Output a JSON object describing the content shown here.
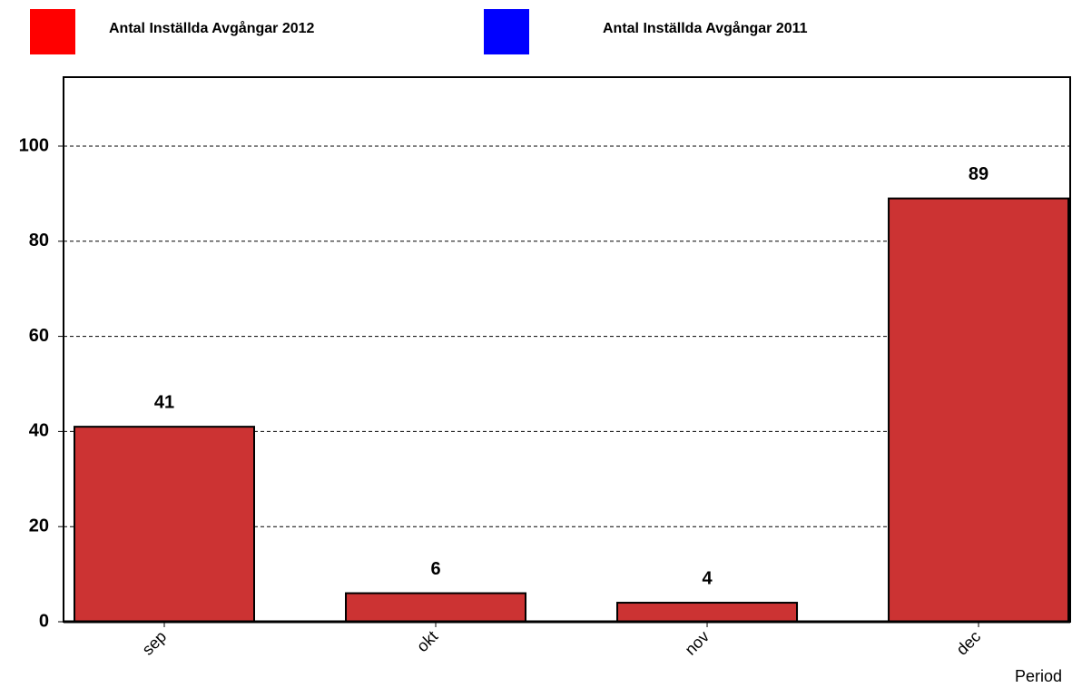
{
  "chart_data": {
    "type": "bar",
    "categories": [
      "sep",
      "okt",
      "nov",
      "dec"
    ],
    "series": [
      {
        "name": "Antal Inställda Avgångar 2012",
        "color": "#cc3333",
        "legend_color": "#ff0000",
        "values": [
          41,
          6,
          4,
          89
        ]
      },
      {
        "name": "Antal Inställda Avgångar 2011",
        "color": "#0000ff",
        "legend_color": "#0000ff",
        "values": [
          null,
          null,
          null,
          null
        ]
      }
    ],
    "x_label": "Period",
    "ylim": [
      0,
      114.5
    ],
    "yticks": [
      0,
      20,
      40,
      60,
      80,
      100
    ],
    "grid": true
  }
}
